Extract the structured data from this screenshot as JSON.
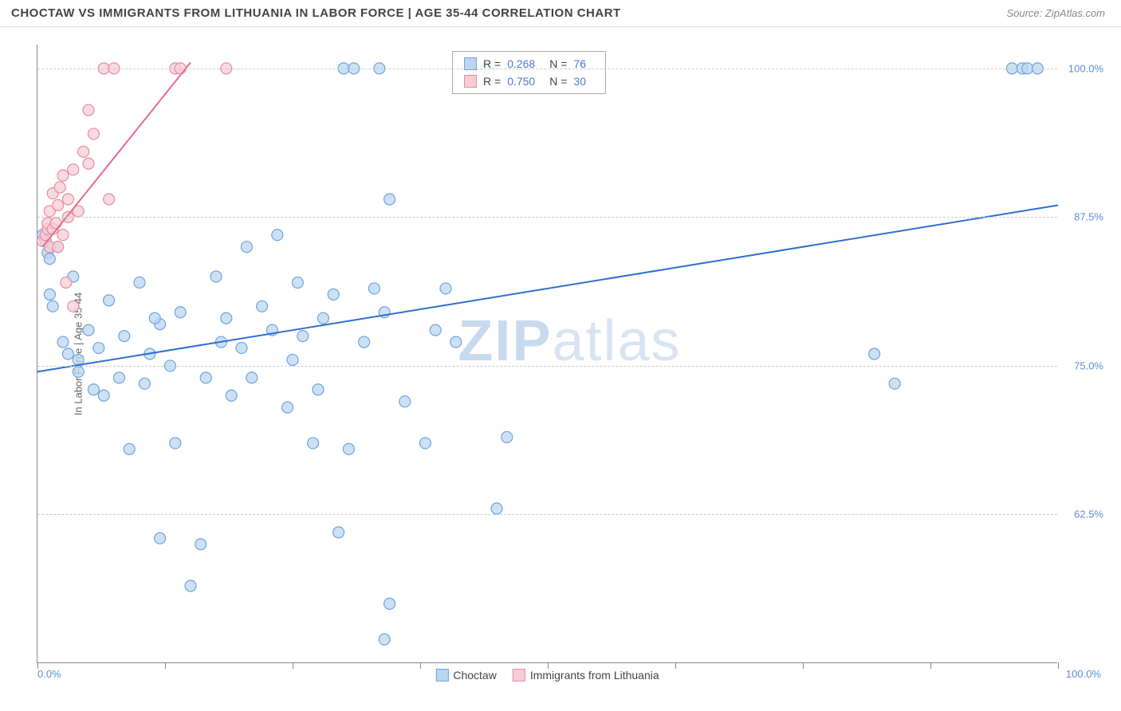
{
  "title": "CHOCTAW VS IMMIGRANTS FROM LITHUANIA IN LABOR FORCE | AGE 35-44 CORRELATION CHART",
  "source": "Source: ZipAtlas.com",
  "ylabel": "In Labor Force | Age 35-44",
  "watermark_a": "ZIP",
  "watermark_b": "atlas",
  "chart": {
    "type": "scatter",
    "xlim": [
      0,
      100
    ],
    "ylim": [
      50,
      102
    ],
    "x_ticks": [
      0,
      12.5,
      25,
      37.5,
      50,
      62.5,
      75,
      87.5,
      100
    ],
    "y_gridlines": [
      62.5,
      75,
      87.5,
      100
    ],
    "y_tick_labels": [
      "62.5%",
      "75.0%",
      "87.5%",
      "100.0%"
    ],
    "x_min_label": "0.0%",
    "x_max_label": "100.0%",
    "grid_color": "#cccccc",
    "background_color": "#ffffff",
    "marker_radius": 7,
    "marker_stroke_width": 1.2,
    "line_width": 2,
    "series": [
      {
        "name": "Choctaw",
        "color_fill": "#bcd5f0",
        "color_stroke": "#6fa5dd",
        "line_color": "#2f6fd0",
        "R": "0.268",
        "N": "76",
        "trend": {
          "x1": 0,
          "y1": 74.5,
          "x2": 100,
          "y2": 88.5
        },
        "points": [
          [
            0.5,
            86.0
          ],
          [
            0.8,
            85.5
          ],
          [
            1.0,
            84.5
          ],
          [
            1.2,
            84.0
          ],
          [
            1.2,
            81.0
          ],
          [
            1.5,
            80.0
          ],
          [
            2.0,
            85.0
          ],
          [
            2.5,
            77.0
          ],
          [
            3.0,
            76.0
          ],
          [
            3.5,
            82.5
          ],
          [
            4.0,
            75.5
          ],
          [
            4.0,
            74.5
          ],
          [
            5.0,
            78.0
          ],
          [
            5.5,
            73.0
          ],
          [
            6.0,
            76.5
          ],
          [
            6.5,
            72.5
          ],
          [
            7.0,
            80.5
          ],
          [
            8.0,
            74.0
          ],
          [
            8.5,
            77.5
          ],
          [
            9.0,
            68.0
          ],
          [
            10.0,
            82.0
          ],
          [
            10.5,
            73.5
          ],
          [
            11.0,
            76.0
          ],
          [
            12.0,
            78.5
          ],
          [
            12.0,
            60.5
          ],
          [
            13.0,
            75.0
          ],
          [
            13.5,
            68.5
          ],
          [
            14.0,
            79.5
          ],
          [
            15.0,
            56.5
          ],
          [
            16.0,
            60.0
          ],
          [
            16.5,
            74.0
          ],
          [
            17.5,
            82.5
          ],
          [
            18.0,
            77.0
          ],
          [
            18.5,
            79.0
          ],
          [
            19.0,
            72.5
          ],
          [
            20.0,
            76.5
          ],
          [
            20.5,
            85.0
          ],
          [
            21.0,
            74.0
          ],
          [
            22.0,
            80.0
          ],
          [
            23.0,
            78.0
          ],
          [
            23.5,
            86.0
          ],
          [
            24.5,
            71.5
          ],
          [
            25.0,
            75.5
          ],
          [
            25.5,
            82.0
          ],
          [
            26.0,
            77.5
          ],
          [
            27.0,
            68.5
          ],
          [
            27.5,
            73.0
          ],
          [
            28.0,
            79.0
          ],
          [
            29.0,
            81.0
          ],
          [
            29.5,
            61.0
          ],
          [
            30.0,
            100.0
          ],
          [
            30.5,
            68.0
          ],
          [
            31.0,
            100.0
          ],
          [
            32.0,
            77.0
          ],
          [
            33.0,
            81.5
          ],
          [
            33.5,
            100.0
          ],
          [
            34.0,
            79.5
          ],
          [
            34.0,
            52.0
          ],
          [
            34.5,
            55.0
          ],
          [
            34.5,
            89.0
          ],
          [
            36.0,
            72.0
          ],
          [
            38.0,
            68.5
          ],
          [
            39.0,
            78.0
          ],
          [
            40.0,
            81.5
          ],
          [
            41.0,
            77.0
          ],
          [
            42.5,
            100.0
          ],
          [
            44.0,
            100.0
          ],
          [
            45.0,
            63.0
          ],
          [
            46.0,
            69.0
          ],
          [
            82.0,
            76.0
          ],
          [
            84.0,
            73.5
          ],
          [
            95.5,
            100.0
          ],
          [
            96.5,
            100.0
          ],
          [
            97.0,
            100.0
          ],
          [
            98.0,
            100.0
          ],
          [
            11.5,
            79.0
          ]
        ]
      },
      {
        "name": "Immigrants from Lithuania",
        "color_fill": "#f6cdd7",
        "color_stroke": "#e98ba3",
        "line_color": "#e86b8e",
        "R": "0.750",
        "N": "30",
        "trend": {
          "x1": 0.5,
          "y1": 85.0,
          "x2": 15.0,
          "y2": 100.5
        },
        "points": [
          [
            0.5,
            85.5
          ],
          [
            0.8,
            86.0
          ],
          [
            1.0,
            86.5
          ],
          [
            1.0,
            87.0
          ],
          [
            1.2,
            85.0
          ],
          [
            1.2,
            88.0
          ],
          [
            1.5,
            86.5
          ],
          [
            1.5,
            89.5
          ],
          [
            1.8,
            87.0
          ],
          [
            2.0,
            88.5
          ],
          [
            2.0,
            85.0
          ],
          [
            2.2,
            90.0
          ],
          [
            2.5,
            86.0
          ],
          [
            2.5,
            91.0
          ],
          [
            2.8,
            82.0
          ],
          [
            3.0,
            87.5
          ],
          [
            3.0,
            89.0
          ],
          [
            3.5,
            91.5
          ],
          [
            3.5,
            80.0
          ],
          [
            4.0,
            88.0
          ],
          [
            4.5,
            93.0
          ],
          [
            5.0,
            96.5
          ],
          [
            5.0,
            92.0
          ],
          [
            5.5,
            94.5
          ],
          [
            6.5,
            100.0
          ],
          [
            7.5,
            100.0
          ],
          [
            7.0,
            89.0
          ],
          [
            13.5,
            100.0
          ],
          [
            14.0,
            100.0
          ],
          [
            18.5,
            100.0
          ]
        ]
      }
    ]
  },
  "legend": {
    "items": [
      {
        "label": "Choctaw",
        "fill": "#bcd5f0",
        "stroke": "#6fa5dd"
      },
      {
        "label": "Immigrants from Lithuania",
        "fill": "#f6cdd7",
        "stroke": "#e98ba3"
      }
    ]
  }
}
